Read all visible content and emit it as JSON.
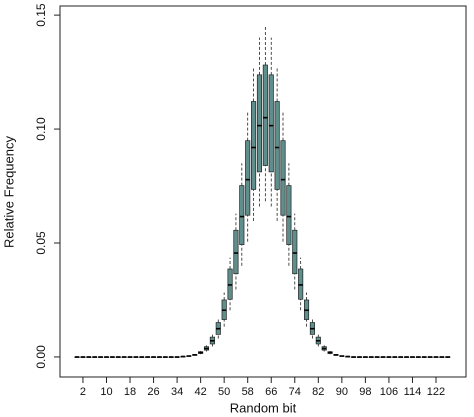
{
  "chart_data": {
    "type": "box",
    "x_label": "Random bit",
    "y_label": "Relative Frequency",
    "color": "#5f8f8c",
    "x": [
      0,
      2,
      4,
      6,
      8,
      10,
      12,
      14,
      16,
      18,
      20,
      22,
      24,
      26,
      28,
      30,
      32,
      34,
      36,
      38,
      40,
      42,
      44,
      46,
      48,
      50,
      52,
      54,
      56,
      58,
      60,
      62,
      64,
      66,
      68,
      70,
      72,
      74,
      76,
      78,
      80,
      82,
      84,
      86,
      88,
      90,
      92,
      94,
      96,
      98,
      100,
      102,
      104,
      106,
      108,
      110,
      112,
      114,
      116,
      118,
      120,
      122,
      124,
      126
    ],
    "whisker_low": [
      0,
      0,
      0,
      0,
      0,
      0,
      0,
      0,
      0,
      0,
      0,
      0,
      0,
      0,
      0,
      0,
      0,
      0,
      0.0001,
      0.0003,
      0.0006,
      0.0012,
      0.0024,
      0.0046,
      0.0081,
      0.0133,
      0.0205,
      0.0296,
      0.04,
      0.0506,
      0.0597,
      0.066,
      0.0683,
      0.066,
      0.0597,
      0.0506,
      0.04,
      0.0296,
      0.0205,
      0.0133,
      0.0081,
      0.0046,
      0.0024,
      0.0012,
      0.0006,
      0.0003,
      0.0001,
      0,
      0,
      0,
      0,
      0,
      0,
      0,
      0,
      0,
      0,
      0,
      0,
      0,
      0,
      0,
      0,
      0
    ],
    "q1": [
      0,
      0,
      0,
      0,
      0,
      0,
      0,
      0,
      0,
      0,
      0,
      0,
      0,
      0,
      0,
      0,
      0,
      0,
      0.0002,
      0.0003,
      0.0007,
      0.0015,
      0.003,
      0.0057,
      0.0099,
      0.0164,
      0.0253,
      0.0365,
      0.0493,
      0.0622,
      0.0735,
      0.0812,
      0.084,
      0.0812,
      0.0735,
      0.0622,
      0.0493,
      0.0365,
      0.0253,
      0.0164,
      0.0099,
      0.0057,
      0.003,
      0.0015,
      0.0007,
      0.0003,
      0.0002,
      0,
      0,
      0,
      0,
      0,
      0,
      0,
      0,
      0,
      0,
      0,
      0,
      0,
      0,
      0,
      0,
      0
    ],
    "median": [
      0,
      0,
      0,
      0,
      0,
      0,
      0,
      0,
      0,
      0,
      0,
      0,
      0,
      0,
      0,
      0,
      0,
      0,
      0.0002,
      0.0004,
      0.0009,
      0.0019,
      0.0037,
      0.0071,
      0.0124,
      0.0205,
      0.0316,
      0.0456,
      0.0616,
      0.0778,
      0.0919,
      0.1015,
      0.105,
      0.1015,
      0.0919,
      0.0778,
      0.0616,
      0.0456,
      0.0316,
      0.0205,
      0.0124,
      0.0071,
      0.0037,
      0.0019,
      0.0009,
      0.0004,
      0.0002,
      0,
      0,
      0,
      0,
      0,
      0,
      0,
      0,
      0,
      0,
      0,
      0,
      0,
      0,
      0,
      0,
      0
    ],
    "q3": [
      0,
      0,
      0,
      0,
      0,
      0,
      0,
      0,
      0,
      0,
      0,
      0,
      0,
      0,
      0,
      0,
      0,
      0,
      0.0002,
      0.0005,
      0.0011,
      0.0023,
      0.0045,
      0.0087,
      0.0151,
      0.025,
      0.0386,
      0.0556,
      0.0752,
      0.0949,
      0.1121,
      0.1238,
      0.1281,
      0.1238,
      0.1121,
      0.0949,
      0.0752,
      0.0556,
      0.0386,
      0.025,
      0.0151,
      0.0087,
      0.0045,
      0.0023,
      0.0011,
      0.0005,
      0.0002,
      0,
      0,
      0,
      0,
      0,
      0,
      0,
      0,
      0,
      0,
      0,
      0,
      0,
      0,
      0,
      0,
      0
    ],
    "whisker_high": [
      0,
      0,
      0,
      0,
      0,
      0,
      0,
      0,
      0,
      0,
      0,
      0,
      0,
      0,
      0,
      0,
      0,
      0,
      0.0003,
      0.0006,
      0.0012,
      0.0026,
      0.0051,
      0.0098,
      0.0171,
      0.0283,
      0.0436,
      0.0629,
      0.085,
      0.1074,
      0.1268,
      0.1401,
      0.1449,
      0.1401,
      0.1268,
      0.1074,
      0.085,
      0.0629,
      0.0436,
      0.0283,
      0.0171,
      0.0098,
      0.0051,
      0.0026,
      0.0012,
      0.0006,
      0.0003,
      0,
      0,
      0,
      0,
      0,
      0,
      0,
      0,
      0,
      0,
      0,
      0,
      0,
      0,
      0,
      0,
      0
    ],
    "xlim": [
      -5.8,
      132.2
    ],
    "ylim": [
      -0.0088,
      0.154
    ],
    "xticks": [
      2,
      10,
      18,
      26,
      34,
      42,
      50,
      58,
      66,
      74,
      82,
      90,
      98,
      106,
      114,
      122
    ],
    "yticks": [
      {
        "value": 0,
        "label": "0.00"
      },
      {
        "value": 0.05,
        "label": "0.05"
      },
      {
        "value": 0.1,
        "label": "0.10"
      },
      {
        "value": 0.15,
        "label": "0.15"
      }
    ]
  }
}
